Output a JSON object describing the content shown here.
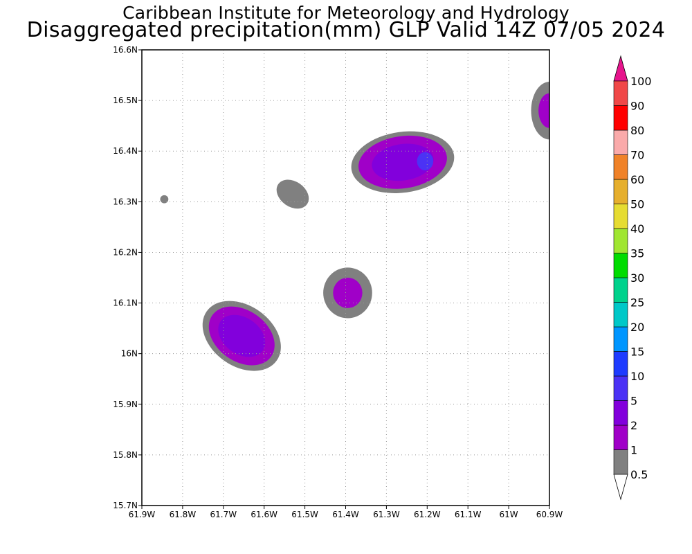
{
  "title": {
    "line1": "Caribbean Institute for Meteorology and Hydrology",
    "line2": "Disaggregated precipitation(mm) GLP Valid 14Z 07/05 2024"
  },
  "map": {
    "lon_range": [
      -61.9,
      -60.9
    ],
    "lat_range": [
      15.7,
      16.6
    ],
    "lon_ticks": [
      {
        "value": -61.9,
        "label": "61.9W"
      },
      {
        "value": -61.8,
        "label": "61.8W"
      },
      {
        "value": -61.7,
        "label": "61.7W"
      },
      {
        "value": -61.6,
        "label": "61.6W"
      },
      {
        "value": -61.5,
        "label": "61.5W"
      },
      {
        "value": -61.4,
        "label": "61.4W"
      },
      {
        "value": -61.3,
        "label": "61.3W"
      },
      {
        "value": -61.2,
        "label": "61.2W"
      },
      {
        "value": -61.1,
        "label": "61.1W"
      },
      {
        "value": -61.0,
        "label": "61W"
      },
      {
        "value": -60.9,
        "label": "60.9W"
      }
    ],
    "lat_ticks": [
      {
        "value": 15.7,
        "label": "15.7N"
      },
      {
        "value": 15.8,
        "label": "15.8N"
      },
      {
        "value": 15.9,
        "label": "15.9N"
      },
      {
        "value": 16.0,
        "label": "16N"
      },
      {
        "value": 16.1,
        "label": "16.1N"
      },
      {
        "value": 16.2,
        "label": "16.2N"
      },
      {
        "value": 16.3,
        "label": "16.3N"
      },
      {
        "value": 16.4,
        "label": "16.4N"
      },
      {
        "value": 16.5,
        "label": "16.5N"
      },
      {
        "value": 16.6,
        "label": "16.6N"
      }
    ],
    "grid": true
  },
  "legend": {
    "labels": [
      "0.5",
      "1",
      "2",
      "5",
      "10",
      "15",
      "20",
      "25",
      "30",
      "35",
      "40",
      "50",
      "60",
      "70",
      "80",
      "90",
      "100"
    ],
    "colors": [
      "#808080",
      "#a000c8",
      "#8200dc",
      "#4b32f5",
      "#1e3cff",
      "#0096ff",
      "#00c8c8",
      "#00d28c",
      "#00dc00",
      "#a0e632",
      "#e6dc32",
      "#e6af2d",
      "#f08228",
      "#faaaaa",
      "#ff0000",
      "#f04848",
      "#e6148c"
    ],
    "under_color": "#ffffff",
    "over_color": "#e6148c"
  },
  "precip_areas": [
    {
      "id": "cell-n-61.85-16.305",
      "lon": -61.845,
      "lat": 16.305,
      "rx_deg": 0.01,
      "ry_deg": 0.008,
      "rot": 0,
      "layers": [
        {
          "level": "0.5",
          "scale": 1.0
        }
      ]
    },
    {
      "id": "cell-n-61.53-16.315",
      "lon": -61.53,
      "lat": 16.315,
      "rx_deg": 0.043,
      "ry_deg": 0.025,
      "rot": 35,
      "layers": [
        {
          "level": "0.5",
          "scale": 1.0
        }
      ]
    },
    {
      "id": "cell-n-61.27-16.38",
      "lon": -61.26,
      "lat": 16.378,
      "rx_deg": 0.127,
      "ry_deg": 0.06,
      "rot": -8,
      "layers": [
        {
          "level": "0.5",
          "scale": 1.0
        },
        {
          "level": "1",
          "scale": 0.86
        },
        {
          "level": "2",
          "scale": 0.6
        }
      ]
    },
    {
      "id": "cell-n-61.205-16.38",
      "lon": -61.205,
      "lat": 16.38,
      "rx_deg": 0.02,
      "ry_deg": 0.018,
      "rot": 0,
      "layers": [
        {
          "level": "5",
          "scale": 1.0
        }
      ]
    },
    {
      "id": "cell-n-60.9-16.48",
      "lon": -60.9,
      "lat": 16.48,
      "rx_deg": 0.045,
      "ry_deg": 0.057,
      "rot": 0,
      "layers": [
        {
          "level": "0.5",
          "scale": 1.0
        },
        {
          "level": "1",
          "scale": 0.6
        }
      ]
    },
    {
      "id": "cell-n-61.4-16.12",
      "lon": -61.395,
      "lat": 16.12,
      "rx_deg": 0.06,
      "ry_deg": 0.05,
      "rot": 0,
      "layers": [
        {
          "level": "0.5",
          "scale": 1.0
        },
        {
          "level": "1",
          "scale": 0.6
        }
      ]
    },
    {
      "id": "cell-n-61.66-16.035",
      "lon": -61.655,
      "lat": 16.035,
      "rx_deg": 0.105,
      "ry_deg": 0.06,
      "rot": 35,
      "layers": [
        {
          "level": "0.5",
          "scale": 1.0
        },
        {
          "level": "1",
          "scale": 0.84
        },
        {
          "level": "2",
          "scale": 0.6
        }
      ]
    }
  ]
}
